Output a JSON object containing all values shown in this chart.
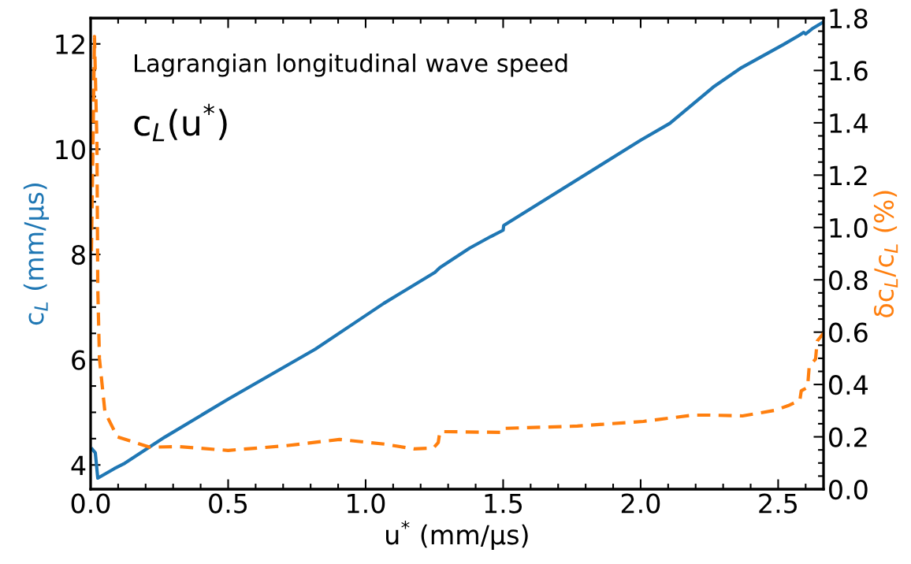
{
  "chart_data": {
    "type": "line",
    "xlabel": "u$^{*}$ (mm/μs)",
    "ylabel": "c$_{L}$ (mm/μs)",
    "y2label": "δc$_{L}$/c$_{L}$ (%)",
    "annotations": [
      "Lagrangian longitudinal wave speed",
      "c$_{L}$(u$^{*}$)"
    ],
    "xlim": [
      0,
      2.665
    ],
    "xticks": [
      {
        "value": 0,
        "label": "0.0"
      },
      0.5,
      {
        "value": 1,
        "label": "1.0"
      },
      1.5,
      {
        "value": 2,
        "label": "2.0"
      },
      2.5
    ],
    "ylim": [
      3.54,
      12.49
    ],
    "yticks": [
      4,
      6,
      8,
      10,
      12
    ],
    "y2lim": [
      0,
      1.8
    ],
    "y2ticks": [
      {
        "value": 0,
        "label": "0.0"
      },
      0.2,
      0.4,
      0.6,
      0.8,
      {
        "value": 1,
        "label": "1.0"
      },
      1.2,
      1.4,
      1.6,
      1.8
    ],
    "series": [
      {
        "color": "#1f77b4",
        "line_style": "solid",
        "x": [
          0.006,
          0.017,
          0.026,
          0.086,
          0.12,
          0.19,
          0.27,
          0.5,
          0.817,
          0.96,
          1.066,
          1.252,
          1.27,
          1.378,
          1.455,
          1.5,
          1.502,
          2.0,
          2.106,
          2.264,
          2.367,
          2.52,
          2.576,
          2.593,
          2.6,
          2.627,
          2.659
        ],
        "values": [
          4.3,
          4.23,
          3.75,
          3.93,
          4.02,
          4.26,
          4.53,
          5.25,
          6.2,
          6.7,
          7.07,
          7.66,
          7.75,
          8.12,
          8.34,
          8.46,
          8.55,
          10.17,
          10.49,
          11.18,
          11.55,
          11.99,
          12.16,
          12.22,
          12.19,
          12.3,
          12.4
        ]
      },
      {
        "color": "#ff7f0e",
        "line_style": "dashed",
        "axis": "y2",
        "x": [
          0.003,
          0.014,
          0.023,
          0.026,
          0.032,
          0.052,
          0.097,
          0.215,
          0.318,
          0.5,
          0.71,
          0.905,
          1.07,
          1.175,
          1.246,
          1.264,
          1.27,
          1.49,
          1.496,
          1.77,
          2.01,
          2.19,
          2.249,
          2.37,
          2.487,
          2.536,
          2.579,
          2.584,
          2.607,
          2.613,
          2.636,
          2.642,
          2.665
        ],
        "values": [
          0.91,
          1.73,
          1.32,
          0.77,
          0.5,
          0.295,
          0.2,
          0.16,
          0.163,
          0.148,
          0.166,
          0.19,
          0.172,
          0.154,
          0.157,
          0.178,
          0.22,
          0.217,
          0.232,
          0.241,
          0.259,
          0.283,
          0.283,
          0.28,
          0.301,
          0.319,
          0.34,
          0.376,
          0.389,
          0.47,
          0.497,
          0.566,
          0.596
        ]
      }
    ]
  }
}
